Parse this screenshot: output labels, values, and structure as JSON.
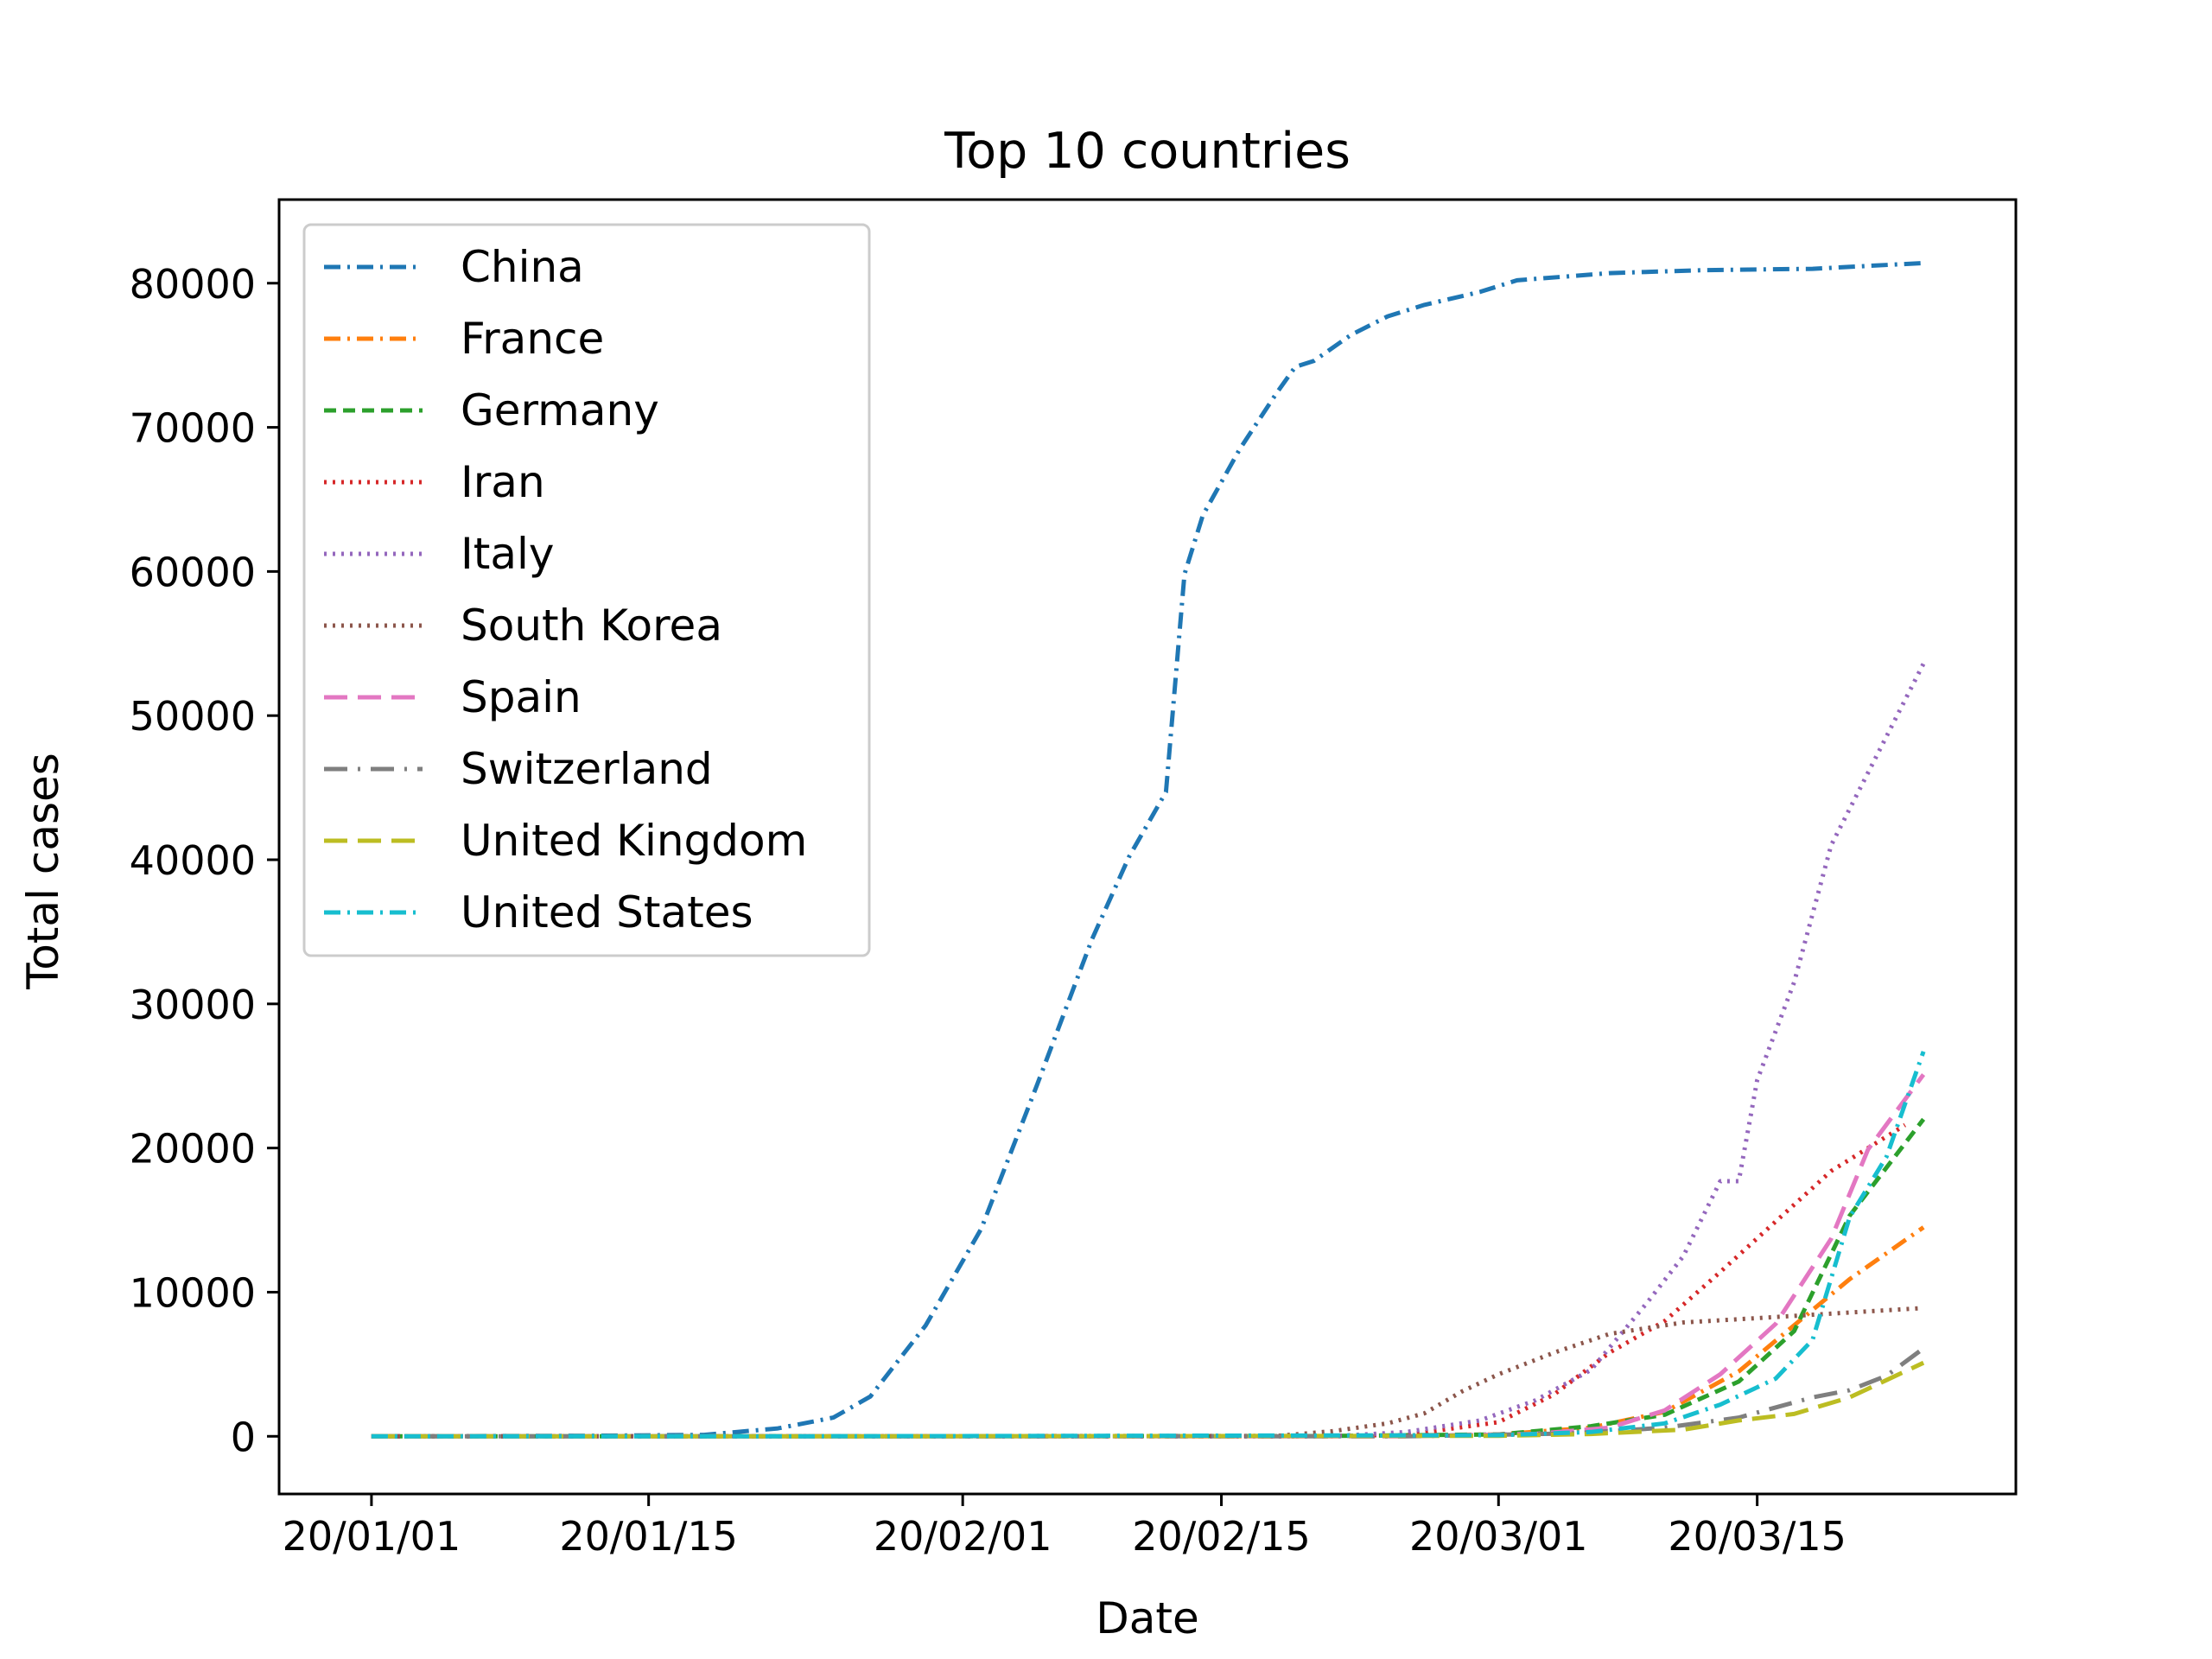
{
  "chart_data": {
    "type": "line",
    "title": "Top 10 countries",
    "xlabel": "Date",
    "ylabel": "Total cases",
    "x_ticks": [
      "20/01/01",
      "20/01/15",
      "20/02/01",
      "20/02/15",
      "20/03/01",
      "20/03/15"
    ],
    "x_tick_dates": [
      "2019-12-31",
      "2020-01-15",
      "2020-02-01",
      "2020-02-15",
      "2020-03-01",
      "2020-03-15"
    ],
    "xlim": [
      "2019-12-26",
      "2020-03-29"
    ],
    "y_ticks": [
      0,
      10000,
      20000,
      30000,
      40000,
      50000,
      60000,
      70000,
      80000
    ],
    "ylim": [
      -4000,
      85800
    ],
    "legend_position": "upper-left",
    "grid": false,
    "series": [
      {
        "name": "China",
        "color": "#1f77b4",
        "dash": "dashdot",
        "points": [
          [
            "2019-12-31",
            0
          ],
          [
            "2020-01-12",
            41
          ],
          [
            "2020-01-18",
            100
          ],
          [
            "2020-01-22",
            548
          ],
          [
            "2020-01-25",
            1300
          ],
          [
            "2020-01-27",
            2761
          ],
          [
            "2020-01-30",
            7700
          ],
          [
            "2020-02-02",
            14400
          ],
          [
            "2020-02-05",
            24300
          ],
          [
            "2020-02-08",
            34500
          ],
          [
            "2020-02-10",
            40200
          ],
          [
            "2020-02-12",
            44700
          ],
          [
            "2020-02-13",
            59800
          ],
          [
            "2020-02-14",
            63900
          ],
          [
            "2020-02-16",
            68500
          ],
          [
            "2020-02-18",
            72400
          ],
          [
            "2020-02-19",
            74200
          ],
          [
            "2020-02-20",
            74600
          ],
          [
            "2020-02-22",
            76400
          ],
          [
            "2020-02-24",
            77700
          ],
          [
            "2020-02-26",
            78500
          ],
          [
            "2020-02-29",
            79400
          ],
          [
            "2020-03-02",
            80200
          ],
          [
            "2020-03-07",
            80700
          ],
          [
            "2020-03-12",
            80900
          ],
          [
            "2020-03-18",
            81000
          ],
          [
            "2020-03-24",
            81400
          ]
        ]
      },
      {
        "name": "France",
        "color": "#ff7f0e",
        "dash": "dashdot",
        "points": [
          [
            "2019-12-31",
            0
          ],
          [
            "2020-02-20",
            12
          ],
          [
            "2020-03-01",
            130
          ],
          [
            "2020-03-06",
            600
          ],
          [
            "2020-03-10",
            1700
          ],
          [
            "2020-03-14",
            4500
          ],
          [
            "2020-03-17",
            7700
          ],
          [
            "2020-03-20",
            10900
          ],
          [
            "2020-03-24",
            14500
          ]
        ]
      },
      {
        "name": "Germany",
        "color": "#2ca02c",
        "dash": "dashed",
        "points": [
          [
            "2019-12-31",
            0
          ],
          [
            "2020-02-20",
            16
          ],
          [
            "2020-03-01",
            130
          ],
          [
            "2020-03-06",
            700
          ],
          [
            "2020-03-10",
            1500
          ],
          [
            "2020-03-14",
            3800
          ],
          [
            "2020-03-17",
            7300
          ],
          [
            "2020-03-20",
            15300
          ],
          [
            "2020-03-24",
            22000
          ]
        ]
      },
      {
        "name": "Iran",
        "color": "#d62728",
        "dash": "dotted",
        "points": [
          [
            "2019-12-31",
            0
          ],
          [
            "2020-02-19",
            2
          ],
          [
            "2020-02-25",
            100
          ],
          [
            "2020-03-01",
            980
          ],
          [
            "2020-03-04",
            2900
          ],
          [
            "2020-03-07",
            5800
          ],
          [
            "2020-03-10",
            8000
          ],
          [
            "2020-03-13",
            11400
          ],
          [
            "2020-03-16",
            14900
          ],
          [
            "2020-03-19",
            18400
          ],
          [
            "2020-03-23",
            21600
          ]
        ]
      },
      {
        "name": "Italy",
        "color": "#9467bd",
        "dash": "dotted",
        "points": [
          [
            "2019-12-31",
            0
          ],
          [
            "2020-02-21",
            3
          ],
          [
            "2020-02-25",
            300
          ],
          [
            "2020-02-29",
            1100
          ],
          [
            "2020-03-03",
            2500
          ],
          [
            "2020-03-06",
            4600
          ],
          [
            "2020-03-09",
            9200
          ],
          [
            "2020-03-11",
            12500
          ],
          [
            "2020-03-13",
            17700
          ],
          [
            "2020-03-14",
            17700
          ],
          [
            "2020-03-15",
            24700
          ],
          [
            "2020-03-17",
            31500
          ],
          [
            "2020-03-19",
            41000
          ],
          [
            "2020-03-24",
            53600
          ]
        ]
      },
      {
        "name": "South Korea",
        "color": "#8c564b",
        "dash": "dotted",
        "points": [
          [
            "2019-12-31",
            0
          ],
          [
            "2020-02-18",
            30
          ],
          [
            "2020-02-21",
            350
          ],
          [
            "2020-02-24",
            900
          ],
          [
            "2020-02-26",
            1600
          ],
          [
            "2020-02-28",
            3100
          ],
          [
            "2020-03-01",
            4300
          ],
          [
            "2020-03-04",
            5800
          ],
          [
            "2020-03-07",
            7100
          ],
          [
            "2020-03-11",
            7900
          ],
          [
            "2020-03-15",
            8200
          ],
          [
            "2020-03-24",
            8900
          ]
        ]
      },
      {
        "name": "Spain",
        "color": "#e377c2",
        "dash": "longdash",
        "points": [
          [
            "2019-12-31",
            0
          ],
          [
            "2020-02-25",
            2
          ],
          [
            "2020-03-03",
            165
          ],
          [
            "2020-03-07",
            600
          ],
          [
            "2020-03-10",
            1800
          ],
          [
            "2020-03-13",
            4300
          ],
          [
            "2020-03-16",
            7800
          ],
          [
            "2020-03-19",
            13700
          ],
          [
            "2020-03-21",
            19900
          ],
          [
            "2020-03-24",
            25100
          ]
        ]
      },
      {
        "name": "Switzerland",
        "color": "#7f7f7f",
        "dash": "longdashdot",
        "points": [
          [
            "2019-12-31",
            0
          ],
          [
            "2020-02-25",
            1
          ],
          [
            "2020-03-05",
            200
          ],
          [
            "2020-03-10",
            600
          ],
          [
            "2020-03-14",
            1300
          ],
          [
            "2020-03-18",
            2700
          ],
          [
            "2020-03-20",
            3200
          ],
          [
            "2020-03-22",
            4200
          ],
          [
            "2020-03-24",
            6100
          ]
        ]
      },
      {
        "name": "United Kingdom",
        "color": "#bcbd22",
        "dash": "longdash",
        "points": [
          [
            "2019-12-31",
            0
          ],
          [
            "2020-01-31",
            2
          ],
          [
            "2020-03-01",
            36
          ],
          [
            "2020-03-06",
            160
          ],
          [
            "2020-03-11",
            460
          ],
          [
            "2020-03-14",
            1100
          ],
          [
            "2020-03-17",
            1550
          ],
          [
            "2020-03-20",
            2700
          ],
          [
            "2020-03-22",
            3900
          ],
          [
            "2020-03-24",
            5100
          ]
        ]
      },
      {
        "name": "United States",
        "color": "#17becf",
        "dash": "dashdot",
        "points": [
          [
            "2019-12-31",
            0
          ],
          [
            "2020-01-21",
            1
          ],
          [
            "2020-03-01",
            75
          ],
          [
            "2020-03-06",
            300
          ],
          [
            "2020-03-10",
            900
          ],
          [
            "2020-03-13",
            2200
          ],
          [
            "2020-03-16",
            4000
          ],
          [
            "2020-03-18",
            6700
          ],
          [
            "2020-03-20",
            15200
          ],
          [
            "2020-03-22",
            19400
          ],
          [
            "2020-03-24",
            26700
          ]
        ]
      }
    ]
  }
}
